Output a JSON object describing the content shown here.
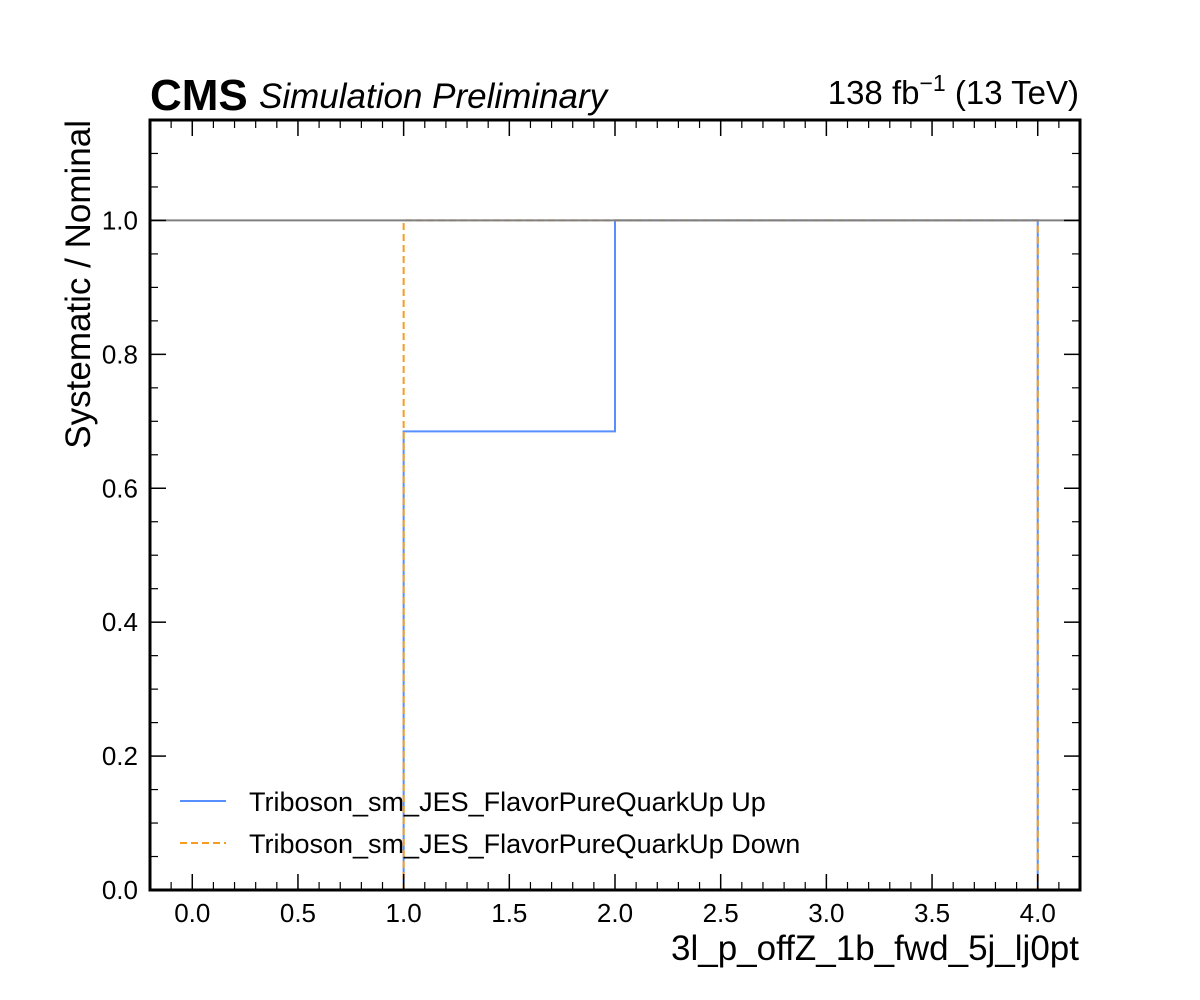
{
  "header": {
    "cms": "CMS",
    "subtitle": "Simulation Preliminary",
    "lumi_value": "138 fb",
    "lumi_exp": "−1",
    "lumi_energy": " (13 TeV)"
  },
  "chart_data": {
    "type": "line",
    "drawstyle": "steps",
    "xlabel": "3l_p_offZ_1b_fwd_5j_lj0pt",
    "ylabel": "Systematic / Nominal",
    "xlim": [
      -0.2,
      4.2
    ],
    "ylim": [
      0.0,
      1.15
    ],
    "xticks": [
      0.0,
      0.5,
      1.0,
      1.5,
      2.0,
      2.5,
      3.0,
      3.5,
      4.0
    ],
    "xtick_labels": [
      "0.0",
      "0.5",
      "1.0",
      "1.5",
      "2.0",
      "2.5",
      "3.0",
      "3.5",
      "4.0"
    ],
    "yticks": [
      0.0,
      0.2,
      0.4,
      0.6,
      0.8,
      1.0
    ],
    "ytick_labels": [
      "0.0",
      "0.2",
      "0.4",
      "0.6",
      "0.8",
      "1.0"
    ],
    "reference_line": 1.0,
    "legend_position": "lower-left",
    "series": [
      {
        "name": "Triboson_sm_JES_FlavorPureQuarkUp Up",
        "color": "#5790fc",
        "style": "solid",
        "bin_edges": [
          1,
          2,
          3,
          4
        ],
        "values": [
          0.685,
          1.0,
          1.0
        ]
      },
      {
        "name": "Triboson_sm_JES_FlavorPureQuarkUp Down",
        "color": "#f89c20",
        "style": "dashed",
        "bin_edges": [
          1,
          2,
          3,
          4
        ],
        "values": [
          1.0,
          1.0,
          1.0
        ]
      }
    ]
  }
}
